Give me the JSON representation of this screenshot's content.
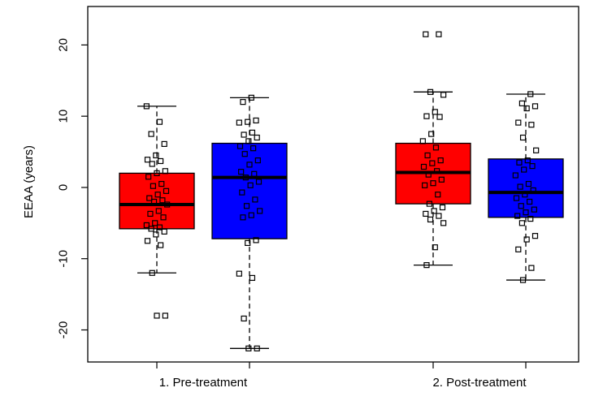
{
  "chart_data": {
    "type": "boxplot",
    "title": "",
    "xlabel": "",
    "ylabel": "EEAA (years)",
    "ylim": [
      -24.5,
      25.4
    ],
    "yticks": [
      -20,
      -10,
      0,
      10,
      20
    ],
    "categories": [
      "1. Pre-treatment",
      "2. Post-treatment"
    ],
    "grid": false,
    "colors": {
      "red": "#ff0000",
      "blue": "#0000ff",
      "line": "#000000"
    },
    "boxes": [
      {
        "group": 0,
        "color": "red",
        "whisker_low": -12.0,
        "q1": -5.8,
        "median": -2.4,
        "q3": 2.0,
        "whisker_high": 11.4,
        "points": [
          11.4,
          9.2,
          7.5,
          6.1,
          4.5,
          3.9,
          3.7,
          3.3,
          2.3,
          2.0,
          1.5,
          0.5,
          0.2,
          -0.5,
          -1.0,
          -1.5,
          -1.8,
          -2.0,
          -2.4,
          -3.3,
          -3.7,
          -4.2,
          -5.0,
          -5.3,
          -5.6,
          -5.8,
          -6.2,
          -6.6,
          -7.5,
          -8.1,
          -12.0,
          -18.0,
          -18.0
        ]
      },
      {
        "group": 0,
        "color": "blue",
        "whisker_low": -22.6,
        "q1": -7.2,
        "median": 1.4,
        "q3": 6.2,
        "whisker_high": 12.6,
        "points": [
          12.6,
          12.0,
          9.4,
          9.2,
          9.1,
          7.7,
          7.4,
          7.0,
          6.5,
          5.8,
          5.5,
          4.7,
          3.8,
          3.2,
          2.2,
          1.9,
          1.4,
          0.8,
          0.3,
          -0.7,
          -1.7,
          -2.6,
          -3.3,
          -3.9,
          -4.2,
          -7.4,
          -7.8,
          -12.1,
          -12.7,
          -18.4,
          -22.6,
          -22.6
        ]
      },
      {
        "group": 1,
        "color": "red",
        "whisker_low": -10.9,
        "q1": -2.3,
        "median": 2.1,
        "q3": 6.2,
        "whisker_high": 13.4,
        "points": [
          21.5,
          21.5,
          13.4,
          13.0,
          10.6,
          10.0,
          9.9,
          7.5,
          6.5,
          5.6,
          4.5,
          3.8,
          3.4,
          2.9,
          2.3,
          1.8,
          1.1,
          0.6,
          0.3,
          -1.0,
          -2.3,
          -2.8,
          -3.3,
          -3.7,
          -4.0,
          -4.5,
          -5.0,
          -8.4,
          -10.9
        ]
      },
      {
        "group": 1,
        "color": "blue",
        "whisker_low": -13.0,
        "q1": -4.2,
        "median": -0.7,
        "q3": 4.0,
        "whisker_high": 13.1,
        "points": [
          13.1,
          11.8,
          11.4,
          11.1,
          9.1,
          8.8,
          7.0,
          5.2,
          3.8,
          3.5,
          3.0,
          2.5,
          1.7,
          0.5,
          0.1,
          -0.4,
          -1.0,
          -1.5,
          -2.0,
          -2.6,
          -3.1,
          -3.5,
          -4.0,
          -4.4,
          -5.0,
          -6.8,
          -7.3,
          -8.7,
          -11.3,
          -13.0
        ]
      }
    ]
  }
}
